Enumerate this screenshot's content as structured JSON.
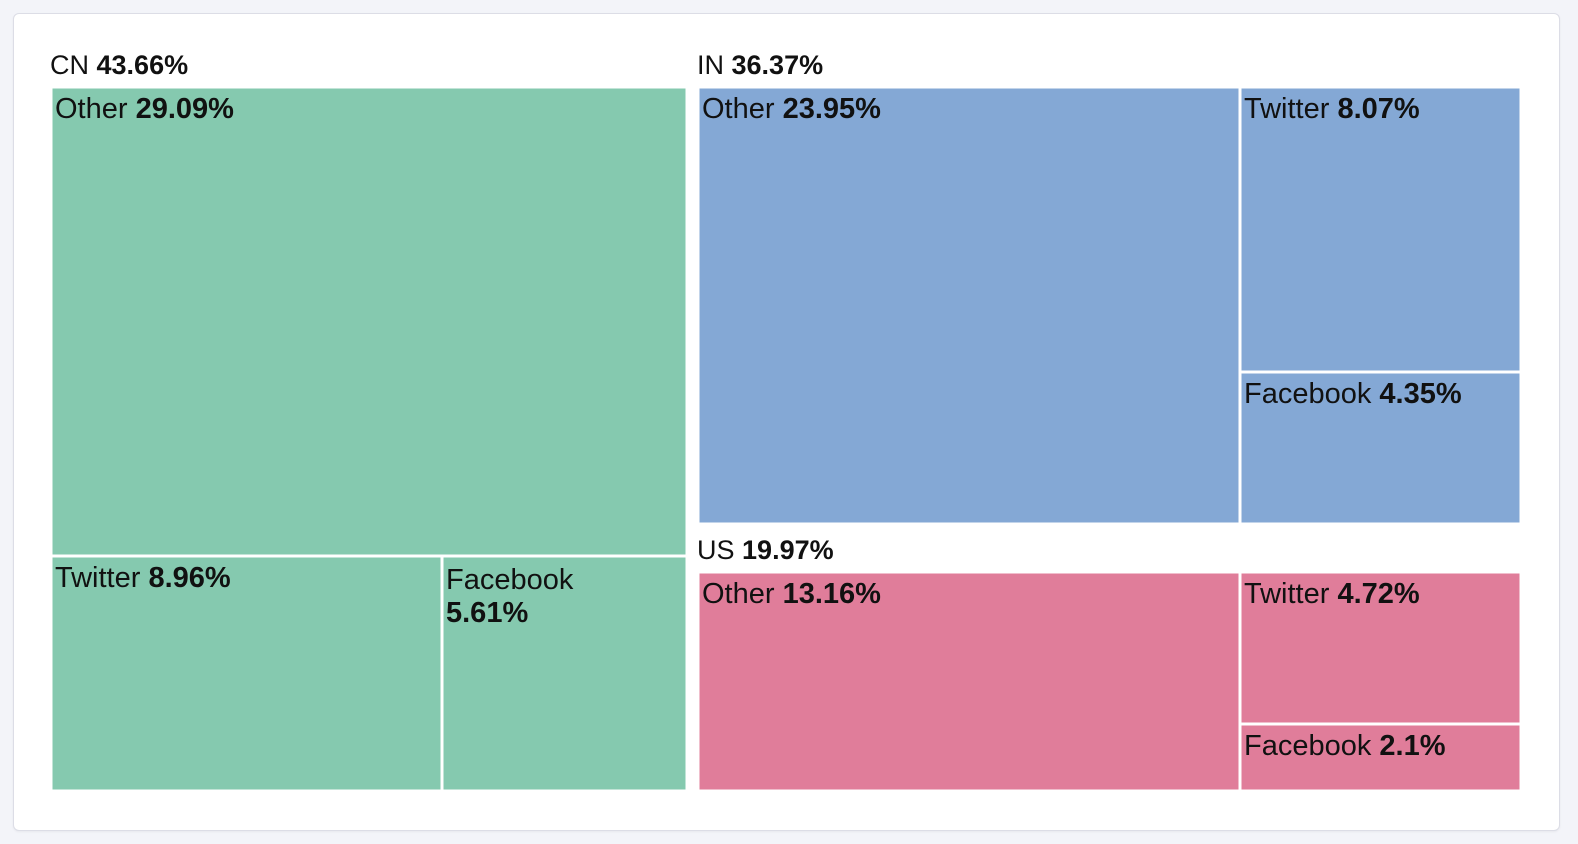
{
  "chart_data": {
    "type": "treemap",
    "colors": {
      "CN": "#85c9af",
      "IN": "#84a8d5",
      "US": "#e07d9a",
      "divider": "#ffffff"
    },
    "groups": [
      {
        "name": "CN",
        "value": "43.66%",
        "children": [
          {
            "name": "Other",
            "value": "29.09%"
          },
          {
            "name": "Twitter",
            "value": "8.96%"
          },
          {
            "name": "Facebook",
            "value": "5.61%"
          }
        ]
      },
      {
        "name": "IN",
        "value": "36.37%",
        "children": [
          {
            "name": "Other",
            "value": "23.95%"
          },
          {
            "name": "Twitter",
            "value": "8.07%"
          },
          {
            "name": "Facebook",
            "value": "4.35%"
          }
        ]
      },
      {
        "name": "US",
        "value": "19.97%",
        "children": [
          {
            "name": "Other",
            "value": "13.16%"
          },
          {
            "name": "Twitter",
            "value": "4.72%"
          },
          {
            "name": "Facebook",
            "value": "2.1%"
          }
        ]
      }
    ]
  }
}
